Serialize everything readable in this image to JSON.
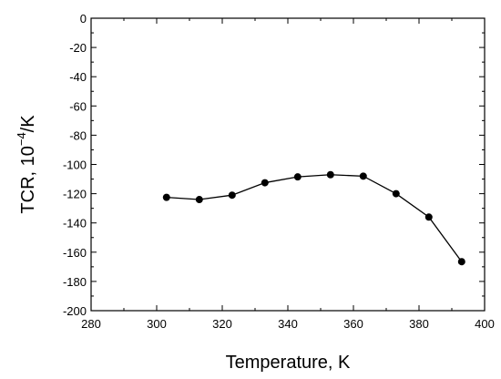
{
  "chart_data": {
    "type": "line",
    "title": "",
    "xlabel": "Temperature, K",
    "ylabel": {
      "prefix": "TCR, 10",
      "sup": "−4",
      "suffix": "/K"
    },
    "xlim": [
      280,
      400
    ],
    "ylim": [
      -200,
      0
    ],
    "xticks": [
      280,
      300,
      320,
      340,
      360,
      380,
      400
    ],
    "yticks": [
      0,
      -20,
      -40,
      -60,
      -80,
      -100,
      -120,
      -140,
      -160,
      -180,
      -200
    ],
    "grid": false,
    "marker": "circle",
    "line_color": "#000000",
    "series": [
      {
        "x": [
          303,
          313,
          323,
          333,
          343,
          353,
          363,
          373,
          383,
          393
        ],
        "y": [
          -122.5,
          -124,
          -121,
          -112.5,
          -108.5,
          -107,
          -108,
          -120,
          -136,
          -166.5
        ]
      }
    ]
  }
}
